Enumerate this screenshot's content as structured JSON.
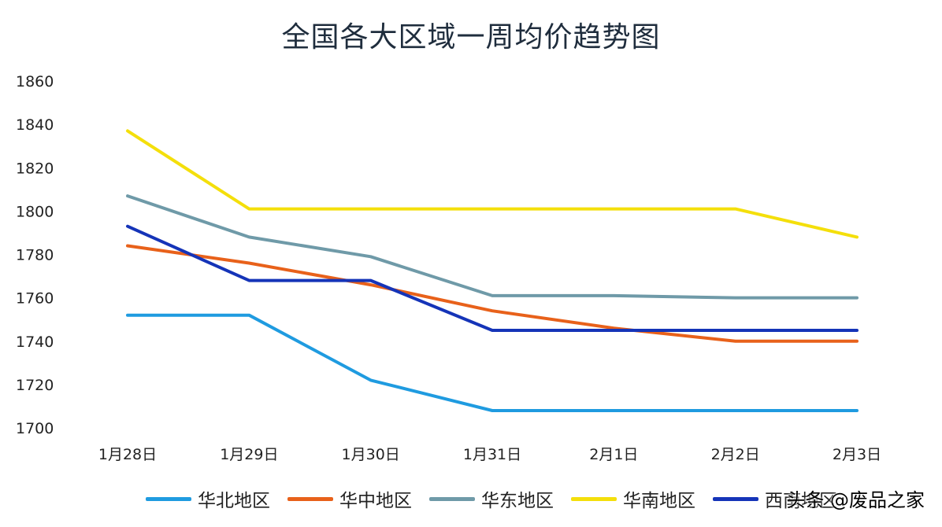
{
  "chart_data": {
    "type": "line",
    "title": "全国各大区域一周均价趋势图",
    "categories": [
      "1月28日",
      "1月29日",
      "1月30日",
      "1月31日",
      "2月1日",
      "2月2日",
      "2月3日"
    ],
    "yticks": [
      "1700",
      "1720",
      "1740",
      "1760",
      "1780",
      "1800",
      "1820",
      "1840",
      "1860"
    ],
    "ylim": [
      1700,
      1860
    ],
    "grid": false,
    "legend_position": "bottom",
    "series": [
      {
        "name": "华北地区",
        "color": "#1f9be0",
        "values": [
          1752,
          1752,
          1722,
          1708,
          1708,
          1708,
          1708
        ]
      },
      {
        "name": "华中地区",
        "color": "#e8611a",
        "values": [
          1784,
          1776,
          1766,
          1754,
          1746,
          1740,
          1740
        ]
      },
      {
        "name": "华东地区",
        "color": "#6f9aa8",
        "values": [
          1807,
          1788,
          1779,
          1761,
          1761,
          1760,
          1760
        ]
      },
      {
        "name": "华南地区",
        "color": "#f4df0b",
        "values": [
          1837,
          1801,
          1801,
          1801,
          1801,
          1801,
          1788
        ]
      },
      {
        "name": "西南地区",
        "color": "#1534b8",
        "values": [
          1793,
          1768,
          1768,
          1745,
          1745,
          1745,
          1745
        ]
      }
    ]
  },
  "watermark": "头条 @废品之家"
}
